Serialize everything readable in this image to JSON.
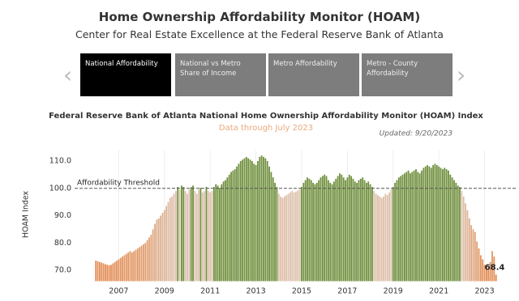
{
  "header": {
    "title": "Home Ownership Affordability Monitor (HOAM)",
    "subtitle": "Center for Real Estate Excellence at the Federal Reserve Bank of Atlanta"
  },
  "tabs": [
    "National Affordability",
    "National  vs  Metro Share of Income",
    "Metro Affordability",
    "Metro - County Affordability"
  ],
  "chart_data": {
    "type": "bar",
    "title": "Federal Reserve Bank of Atlanta National Home Ownership Affordability Monitor (HOAM) Index",
    "subtitle": "Data through July 2023",
    "updated": "Updated: 9/20/2023",
    "y_label": "HOAM Index",
    "threshold": {
      "value": 100,
      "label": "Affordability Threshold"
    },
    "above_color": "#6f8f3d",
    "below_colors": [
      "#e3803f",
      "#dcc3b0"
    ],
    "ylim": [
      66,
      114
    ],
    "yticks": [
      {
        "value": 70,
        "label": "70.0"
      },
      {
        "value": 80,
        "label": "80.0"
      },
      {
        "value": 90,
        "label": "90.0"
      },
      {
        "value": 100,
        "label": "100.0"
      },
      {
        "value": 110,
        "label": "110.0"
      }
    ],
    "categories": [
      null,
      null,
      null,
      null,
      null,
      null,
      null,
      null,
      null,
      null,
      null,
      null,
      "2007",
      null,
      null,
      null,
      null,
      null,
      null,
      null,
      null,
      null,
      null,
      null,
      null,
      null,
      null,
      null,
      null,
      null,
      null,
      null,
      null,
      null,
      null,
      null,
      "2009",
      null,
      null,
      null,
      null,
      null,
      null,
      null,
      null,
      null,
      null,
      null,
      null,
      null,
      null,
      null,
      null,
      null,
      null,
      null,
      null,
      null,
      null,
      null,
      "2011",
      null,
      null,
      null,
      null,
      null,
      null,
      null,
      null,
      null,
      null,
      null,
      null,
      null,
      null,
      null,
      null,
      null,
      null,
      null,
      null,
      null,
      null,
      null,
      "2013",
      null,
      null,
      null,
      null,
      null,
      null,
      null,
      null,
      null,
      null,
      null,
      null,
      null,
      null,
      null,
      null,
      null,
      null,
      null,
      null,
      null,
      null,
      null,
      "2015",
      null,
      null,
      null,
      null,
      null,
      null,
      null,
      null,
      null,
      null,
      null,
      null,
      null,
      null,
      null,
      null,
      null,
      null,
      null,
      null,
      null,
      null,
      null,
      "2017",
      null,
      null,
      null,
      null,
      null,
      null,
      null,
      null,
      null,
      null,
      null,
      null,
      null,
      null,
      null,
      null,
      null,
      null,
      null,
      null,
      null,
      null,
      null,
      "2019",
      null,
      null,
      null,
      null,
      null,
      null,
      null,
      null,
      null,
      null,
      null,
      null,
      null,
      null,
      null,
      null,
      null,
      null,
      null,
      null,
      null,
      null,
      null,
      "2021",
      null,
      null,
      null,
      null,
      null,
      null,
      null,
      null,
      null,
      null,
      null,
      null,
      null,
      null,
      null,
      null,
      null,
      null,
      null,
      null,
      null,
      null,
      null,
      "2023",
      null,
      null,
      null,
      null,
      null,
      null
    ],
    "values": [
      73.5,
      73.3,
      73.0,
      72.8,
      72.5,
      72.2,
      72.0,
      71.8,
      72.0,
      72.5,
      73.0,
      73.5,
      74.0,
      74.5,
      75.0,
      75.5,
      76.0,
      76.5,
      77.0,
      76.5,
      77.0,
      77.5,
      78.0,
      78.5,
      79.0,
      79.5,
      80.0,
      81.0,
      82.0,
      83.0,
      85.0,
      87.0,
      88.5,
      89.0,
      90.0,
      91.0,
      92.0,
      93.5,
      95.0,
      96.5,
      97.0,
      98.0,
      99.0,
      100.5,
      99.5,
      101.0,
      100.5,
      99.0,
      98.0,
      99.5,
      100.5,
      101.0,
      99.0,
      98.0,
      99.5,
      100.2,
      98.5,
      99.0,
      100.5,
      99.0,
      98.5,
      99.0,
      100.5,
      101.5,
      101.0,
      100.2,
      101.5,
      102.5,
      103.0,
      104.0,
      105.0,
      106.0,
      106.5,
      107.0,
      108.0,
      109.0,
      110.0,
      110.5,
      111.0,
      111.5,
      111.0,
      110.5,
      110.0,
      109.0,
      108.5,
      110.0,
      111.5,
      112.0,
      111.5,
      111.0,
      110.0,
      108.0,
      106.0,
      104.0,
      102.0,
      100.5,
      98.0,
      97.0,
      96.5,
      97.0,
      97.5,
      98.0,
      98.5,
      99.0,
      98.5,
      98.8,
      99.2,
      99.5,
      100.5,
      102.0,
      103.0,
      104.0,
      103.5,
      103.0,
      102.0,
      101.5,
      102.0,
      103.0,
      104.0,
      104.5,
      105.0,
      104.5,
      103.0,
      102.0,
      101.5,
      102.5,
      103.5,
      104.5,
      105.5,
      105.0,
      104.0,
      103.0,
      104.0,
      105.0,
      104.5,
      103.5,
      102.5,
      102.0,
      103.0,
      103.5,
      104.0,
      103.0,
      102.0,
      102.5,
      101.5,
      100.5,
      99.0,
      98.0,
      97.5,
      97.0,
      96.5,
      97.0,
      98.0,
      97.5,
      98.5,
      99.5,
      100.5,
      102.0,
      103.0,
      104.0,
      104.5,
      105.0,
      105.5,
      106.0,
      106.5,
      105.5,
      106.0,
      106.5,
      107.0,
      106.0,
      105.5,
      106.5,
      107.5,
      108.0,
      108.5,
      108.0,
      107.5,
      108.5,
      109.0,
      108.5,
      108.0,
      107.5,
      107.0,
      107.5,
      107.0,
      106.5,
      105.0,
      104.0,
      103.0,
      102.0,
      101.0,
      100.5,
      99.0,
      97.0,
      94.5,
      92.0,
      89.0,
      86.5,
      85.0,
      84.0,
      80.5,
      78.0,
      75.5,
      74.0,
      72.0,
      71.0,
      70.5,
      73.0,
      77.0,
      75.0,
      68.4
    ]
  }
}
